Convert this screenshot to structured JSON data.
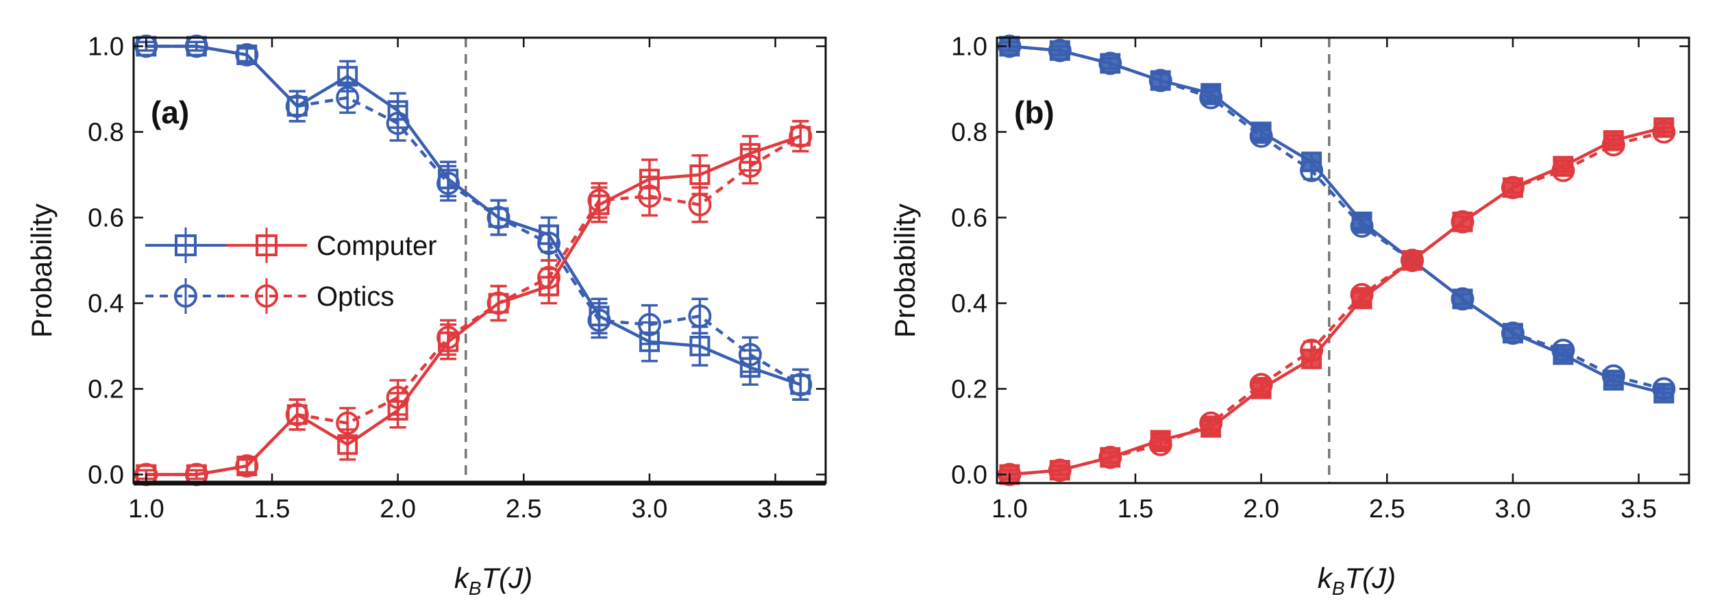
{
  "colors": {
    "computer": "#3a5fb0",
    "optics": "#e03a3e",
    "axis": "#111111",
    "vline": "#777777"
  },
  "chart_data": [
    {
      "type": "line",
      "panel_label": "(a)",
      "xlabel": {
        "main": "k",
        "sub": "B",
        "rest": "T(J)"
      },
      "ylabel": "Probability",
      "xlim": [
        0.95,
        3.7
      ],
      "ylim": [
        -0.02,
        1.02
      ],
      "xticks": [
        1.0,
        1.5,
        2.0,
        2.5,
        3.0,
        3.5
      ],
      "xtick_labels": [
        "1.0",
        "1.5",
        "2.0",
        "2.5",
        "3.0",
        "3.5"
      ],
      "yticks": [
        0.0,
        0.2,
        0.4,
        0.6,
        0.8,
        1.0
      ],
      "ytick_labels": [
        "0.0",
        "0.2",
        "0.4",
        "0.6",
        "0.8",
        "1.0"
      ],
      "vline_x": 2.27,
      "x": [
        1.0,
        1.2,
        1.4,
        1.6,
        1.8,
        2.0,
        2.2,
        2.4,
        2.6,
        2.8,
        3.0,
        3.2,
        3.4,
        3.6
      ],
      "legend": {
        "placement": "center-left",
        "entries": [
          "Computer",
          "Optics"
        ]
      },
      "series": [
        {
          "name": "Computer (blue)",
          "color": "blue",
          "marker": "square",
          "line": "solid",
          "values": [
            1.0,
            1.0,
            0.98,
            0.86,
            0.93,
            0.85,
            0.69,
            0.6,
            0.56,
            0.37,
            0.31,
            0.3,
            0.25,
            0.21
          ],
          "errors": [
            0.01,
            0.01,
            0.015,
            0.035,
            0.035,
            0.04,
            0.04,
            0.04,
            0.04,
            0.04,
            0.045,
            0.045,
            0.04,
            0.035
          ]
        },
        {
          "name": "Optics (blue)",
          "color": "blue",
          "marker": "circle",
          "line": "dashed",
          "values": [
            1.0,
            1.0,
            0.98,
            0.86,
            0.88,
            0.82,
            0.68,
            0.6,
            0.54,
            0.36,
            0.35,
            0.37,
            0.28,
            0.21
          ],
          "errors": [
            0.01,
            0.01,
            0.015,
            0.035,
            0.035,
            0.04,
            0.04,
            0.04,
            0.04,
            0.04,
            0.045,
            0.04,
            0.04,
            0.035
          ]
        },
        {
          "name": "Computer (red)",
          "color": "red",
          "marker": "square",
          "line": "solid",
          "values": [
            0.0,
            0.0,
            0.02,
            0.14,
            0.07,
            0.15,
            0.31,
            0.4,
            0.44,
            0.63,
            0.69,
            0.7,
            0.75,
            0.79
          ],
          "errors": [
            0.01,
            0.01,
            0.015,
            0.035,
            0.035,
            0.04,
            0.04,
            0.04,
            0.04,
            0.04,
            0.045,
            0.045,
            0.04,
            0.035
          ]
        },
        {
          "name": "Optics (red)",
          "color": "red",
          "marker": "circle",
          "line": "dashed",
          "values": [
            0.0,
            0.0,
            0.02,
            0.14,
            0.12,
            0.18,
            0.32,
            0.4,
            0.46,
            0.64,
            0.65,
            0.63,
            0.72,
            0.79
          ],
          "errors": [
            0.01,
            0.01,
            0.015,
            0.035,
            0.035,
            0.04,
            0.04,
            0.04,
            0.04,
            0.04,
            0.045,
            0.04,
            0.04,
            0.035
          ]
        }
      ]
    },
    {
      "type": "line",
      "panel_label": "(b)",
      "xlabel": {
        "main": "k",
        "sub": "B",
        "rest": "T(J)"
      },
      "ylabel": "Probability",
      "xlim": [
        0.95,
        3.7
      ],
      "ylim": [
        -0.02,
        1.02
      ],
      "xticks": [
        1.0,
        1.5,
        2.0,
        2.5,
        3.0,
        3.5
      ],
      "xtick_labels": [
        "1.0",
        "1.5",
        "2.0",
        "2.5",
        "3.0",
        "3.5"
      ],
      "yticks": [
        0.0,
        0.2,
        0.4,
        0.6,
        0.8,
        1.0
      ],
      "ytick_labels": [
        "0.0",
        "0.2",
        "0.4",
        "0.6",
        "0.8",
        "1.0"
      ],
      "vline_x": 2.27,
      "x": [
        1.0,
        1.2,
        1.4,
        1.6,
        1.8,
        2.0,
        2.2,
        2.4,
        2.6,
        2.8,
        3.0,
        3.2,
        3.4,
        3.6
      ],
      "series": [
        {
          "name": "Computer (blue)",
          "color": "blue",
          "marker": "square",
          "line": "solid",
          "values": [
            1.0,
            0.99,
            0.96,
            0.92,
            0.89,
            0.8,
            0.73,
            0.59,
            0.5,
            0.41,
            0.33,
            0.28,
            0.22,
            0.19
          ],
          "errors": [
            0.01,
            0.01,
            0.012,
            0.015,
            0.015,
            0.015,
            0.02,
            0.015,
            0.015,
            0.012,
            0.012,
            0.012,
            0.012,
            0.01
          ]
        },
        {
          "name": "Optics (blue)",
          "color": "blue",
          "marker": "circle",
          "line": "dashed",
          "values": [
            1.0,
            0.99,
            0.96,
            0.92,
            0.88,
            0.79,
            0.71,
            0.58,
            0.5,
            0.41,
            0.33,
            0.29,
            0.23,
            0.2
          ],
          "errors": [
            0.01,
            0.01,
            0.012,
            0.015,
            0.015,
            0.015,
            0.02,
            0.015,
            0.015,
            0.012,
            0.012,
            0.012,
            0.012,
            0.01
          ]
        },
        {
          "name": "Computer (red)",
          "color": "red",
          "marker": "square",
          "line": "solid",
          "values": [
            0.0,
            0.01,
            0.04,
            0.08,
            0.11,
            0.2,
            0.27,
            0.41,
            0.5,
            0.59,
            0.67,
            0.72,
            0.78,
            0.81
          ],
          "errors": [
            0.01,
            0.01,
            0.012,
            0.015,
            0.015,
            0.015,
            0.02,
            0.015,
            0.015,
            0.012,
            0.012,
            0.012,
            0.012,
            0.01
          ]
        },
        {
          "name": "Optics (red)",
          "color": "red",
          "marker": "circle",
          "line": "dashed",
          "values": [
            0.0,
            0.01,
            0.04,
            0.07,
            0.12,
            0.21,
            0.29,
            0.42,
            0.5,
            0.59,
            0.67,
            0.71,
            0.77,
            0.8
          ],
          "errors": [
            0.01,
            0.01,
            0.012,
            0.015,
            0.015,
            0.015,
            0.02,
            0.015,
            0.015,
            0.012,
            0.012,
            0.012,
            0.012,
            0.01
          ]
        }
      ]
    }
  ]
}
